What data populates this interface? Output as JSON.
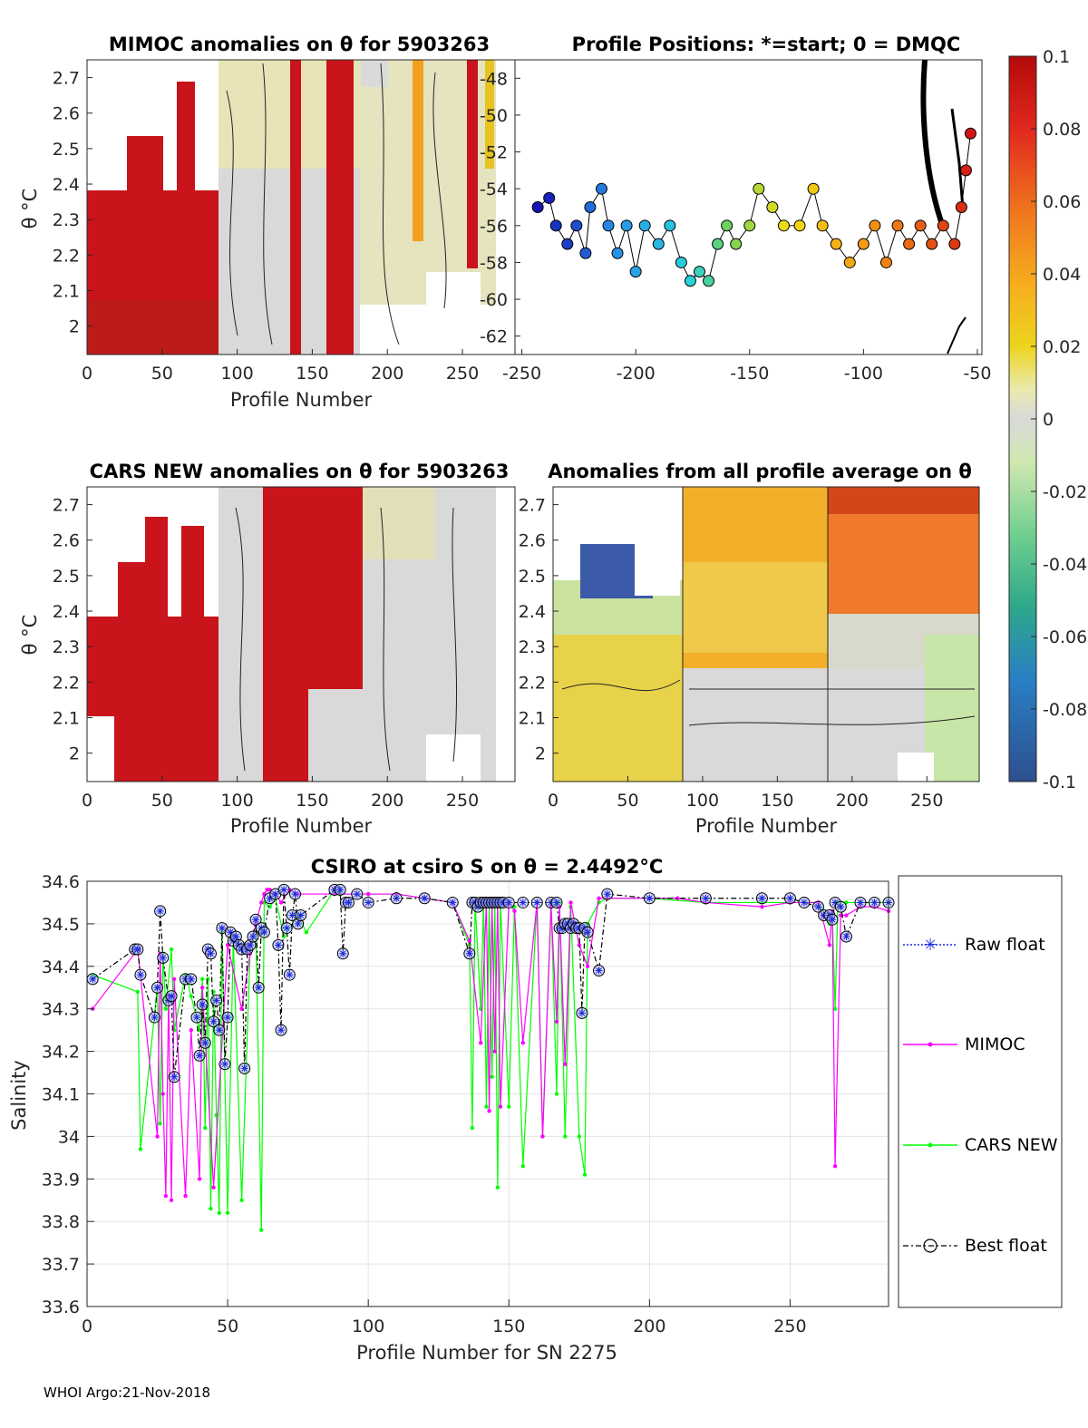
{
  "footer": "WHOI Argo:21-Nov-2018",
  "colors": {
    "raw": "#1f2bd9",
    "mimoc": "#ff00ff",
    "cars": "#00ff00",
    "best": "#000000"
  },
  "colorbar": {
    "ticks": [
      "0.1",
      "0.08",
      "0.06",
      "0.04",
      "0.02",
      "0",
      "-0.02",
      "-0.04",
      "-0.06",
      "-0.08",
      "-0.1"
    ],
    "min": -0.1,
    "max": 0.1
  },
  "chart_data": [
    {
      "type": "heatmap",
      "title": "MIMOC anomalies on θ  for 5903263",
      "xlabel": "Profile Number",
      "ylabel": "θ °C",
      "xticks": [
        "0",
        "50",
        "100",
        "150",
        "200",
        "250"
      ],
      "yticks": [
        "2.7",
        "2.6",
        "2.5",
        "2.4",
        "2.3",
        "2.2",
        "2.1",
        "2"
      ],
      "xlim": [
        0,
        285
      ],
      "ylim": [
        1.92,
        2.75
      ]
    },
    {
      "type": "scatter",
      "title": "Profile Positions: *=start; 0 = DMQC",
      "xticks": [
        "-250",
        "-200",
        "-150",
        "-100",
        "-50"
      ],
      "yticks": [
        "-48",
        "-50",
        "-52",
        "-54",
        "-56",
        "-58",
        "-60",
        "-62"
      ],
      "xlim": [
        -253,
        -48
      ],
      "ylim": [
        -63,
        -47
      ]
    },
    {
      "type": "heatmap",
      "title": "CARS NEW anomalies on θ for 5903263",
      "xlabel": "Profile Number",
      "ylabel": "θ °C",
      "xticks": [
        "0",
        "50",
        "100",
        "150",
        "200",
        "250"
      ],
      "yticks": [
        "2.7",
        "2.6",
        "2.5",
        "2.4",
        "2.3",
        "2.2",
        "2.1",
        "2"
      ],
      "xlim": [
        0,
        285
      ],
      "ylim": [
        1.92,
        2.75
      ]
    },
    {
      "type": "heatmap",
      "title": "Anomalies from all profile average on θ",
      "xlabel": "Profile Number",
      "xticks": [
        "0",
        "50",
        "100",
        "150",
        "200",
        "250"
      ],
      "yticks": [
        "2.7",
        "2.6",
        "2.5",
        "2.4",
        "2.3",
        "2.2",
        "2.1",
        "2"
      ],
      "xlim": [
        0,
        285
      ],
      "ylim": [
        1.92,
        2.75
      ]
    },
    {
      "type": "line",
      "title": "CSIRO at csiro S on θ = 2.4492°C",
      "xlabel": "Profile Number for SN 2275",
      "ylabel": "Salinity",
      "xticks": [
        "0",
        "50",
        "100",
        "150",
        "200",
        "250"
      ],
      "yticks": [
        "34.6",
        "34.5",
        "34.4",
        "34.3",
        "34.2",
        "34.1",
        "34",
        "33.9",
        "33.8",
        "33.7",
        "33.6"
      ],
      "xlim": [
        0,
        285
      ],
      "ylim": [
        33.6,
        34.6
      ],
      "legend": [
        "Raw float",
        "MIMOC",
        "CARS NEW",
        "Best float"
      ],
      "legend_position": "right",
      "series": [
        {
          "name": "Raw float / Best float",
          "x": [
            2,
            17,
            18,
            19,
            24,
            25,
            26,
            27,
            29,
            30,
            31,
            35,
            37,
            39,
            40,
            41,
            42,
            43,
            44,
            45,
            46,
            47,
            48,
            49,
            50,
            51,
            52,
            53,
            54,
            55,
            56,
            57,
            58,
            59,
            60,
            61,
            62,
            63,
            65,
            67,
            68,
            69,
            70,
            71,
            72,
            73,
            74,
            75,
            76,
            88,
            90,
            91,
            92,
            93,
            96,
            100,
            110,
            120,
            130,
            136,
            137,
            138,
            139,
            140,
            141,
            142,
            143,
            144,
            145,
            146,
            147,
            148,
            150,
            155,
            160,
            165,
            167,
            168,
            169,
            170,
            171,
            172,
            173,
            174,
            175,
            176,
            177,
            178,
            182,
            185,
            200,
            220,
            240,
            250,
            255,
            260,
            262,
            264,
            265,
            266,
            268,
            270,
            275,
            280,
            285
          ],
          "values": [
            34.37,
            34.44,
            34.44,
            34.38,
            34.28,
            34.35,
            34.53,
            34.42,
            34.32,
            34.33,
            34.14,
            34.37,
            34.37,
            34.28,
            34.19,
            34.31,
            34.22,
            34.44,
            34.43,
            34.27,
            34.32,
            34.25,
            34.49,
            34.17,
            34.28,
            34.48,
            34.46,
            34.47,
            34.45,
            34.44,
            34.16,
            34.44,
            34.45,
            34.47,
            34.51,
            34.35,
            34.49,
            34.48,
            34.56,
            34.57,
            34.45,
            34.25,
            34.58,
            34.49,
            34.38,
            34.52,
            34.57,
            34.5,
            34.52,
            34.58,
            34.58,
            34.43,
            34.55,
            34.55,
            34.57,
            34.55,
            34.56,
            34.56,
            34.55,
            34.43,
            34.55,
            34.55,
            34.54,
            34.55,
            34.55,
            34.55,
            34.55,
            34.55,
            34.55,
            34.55,
            34.55,
            34.55,
            34.55,
            34.55,
            34.55,
            34.55,
            34.55,
            34.49,
            34.49,
            34.5,
            34.5,
            34.49,
            34.5,
            34.49,
            34.49,
            34.29,
            34.49,
            34.48,
            34.39,
            34.57,
            34.56,
            34.56,
            34.56,
            34.56,
            34.55,
            34.54,
            34.52,
            34.52,
            34.51,
            34.55,
            34.54,
            34.47,
            34.55,
            34.55,
            34.55
          ]
        },
        {
          "name": "MIMOC",
          "x": [
            2,
            18,
            25,
            26,
            27,
            28,
            29,
            30,
            31,
            35,
            37,
            40,
            41,
            45,
            50,
            55,
            58,
            60,
            62,
            63,
            64,
            65,
            67,
            69,
            72,
            75,
            88,
            100,
            110,
            120,
            130,
            136,
            140,
            142,
            143,
            144,
            145,
            146,
            147,
            150,
            152,
            155,
            160,
            162,
            165,
            167,
            168,
            170,
            172,
            175,
            178,
            182,
            185,
            200,
            210,
            220,
            240,
            250,
            260,
            264,
            265,
            266,
            268,
            270,
            275,
            280,
            285
          ],
          "values": [
            34.3,
            34.44,
            34.0,
            34.43,
            34.1,
            33.86,
            34.33,
            33.85,
            34.37,
            33.86,
            34.25,
            33.9,
            34.35,
            33.88,
            34.45,
            34.3,
            34.43,
            34.5,
            34.55,
            34.57,
            34.58,
            34.58,
            34.57,
            34.55,
            34.58,
            34.57,
            34.57,
            34.57,
            34.57,
            34.56,
            34.55,
            34.46,
            34.22,
            34.55,
            34.06,
            34.55,
            34.2,
            34.55,
            34.07,
            34.55,
            34.53,
            34.22,
            34.55,
            34.0,
            34.54,
            34.27,
            34.54,
            34.17,
            34.55,
            34.45,
            34.4,
            34.56,
            34.56,
            34.56,
            34.56,
            34.55,
            34.54,
            34.55,
            34.55,
            34.45,
            34.53,
            33.93,
            34.52,
            34.52,
            34.54,
            34.54,
            34.53
          ]
        },
        {
          "name": "CARS NEW",
          "x": [
            2,
            18,
            19,
            25,
            26,
            27,
            28,
            30,
            31,
            35,
            37,
            40,
            41,
            42,
            43,
            44,
            45,
            46,
            47,
            48,
            50,
            52,
            55,
            58,
            60,
            62,
            63,
            65,
            67,
            70,
            75,
            78,
            88,
            90,
            100,
            110,
            120,
            130,
            136,
            137,
            138,
            140,
            141,
            142,
            143,
            144,
            145,
            146,
            147,
            150,
            152,
            155,
            160,
            162,
            165,
            167,
            168,
            170,
            172,
            175,
            177,
            178,
            182,
            185,
            200,
            220,
            240,
            250,
            260,
            264,
            265,
            266,
            267,
            270,
            275,
            280,
            285
          ],
          "values": [
            34.38,
            34.34,
            33.97,
            34.35,
            34.03,
            34.43,
            34.3,
            34.44,
            34.25,
            34.38,
            34.33,
            34.25,
            34.37,
            34.02,
            34.37,
            33.83,
            34.34,
            34.05,
            33.82,
            34.48,
            33.82,
            34.46,
            33.85,
            34.44,
            34.5,
            33.78,
            34.55,
            34.54,
            34.56,
            34.47,
            34.52,
            34.48,
            34.58,
            34.57,
            34.57,
            34.57,
            34.56,
            34.55,
            34.45,
            34.02,
            34.55,
            34.3,
            34.55,
            34.07,
            34.55,
            34.14,
            34.55,
            33.88,
            34.55,
            34.07,
            34.54,
            33.93,
            34.55,
            34.0,
            34.55,
            34.1,
            34.55,
            34.0,
            34.54,
            34.0,
            33.91,
            34.5,
            34.55,
            34.56,
            34.56,
            34.55,
            34.55,
            34.55,
            34.55,
            34.5,
            34.53,
            34.3,
            34.55,
            34.55,
            34.55,
            34.55,
            34.55
          ]
        }
      ]
    }
  ]
}
